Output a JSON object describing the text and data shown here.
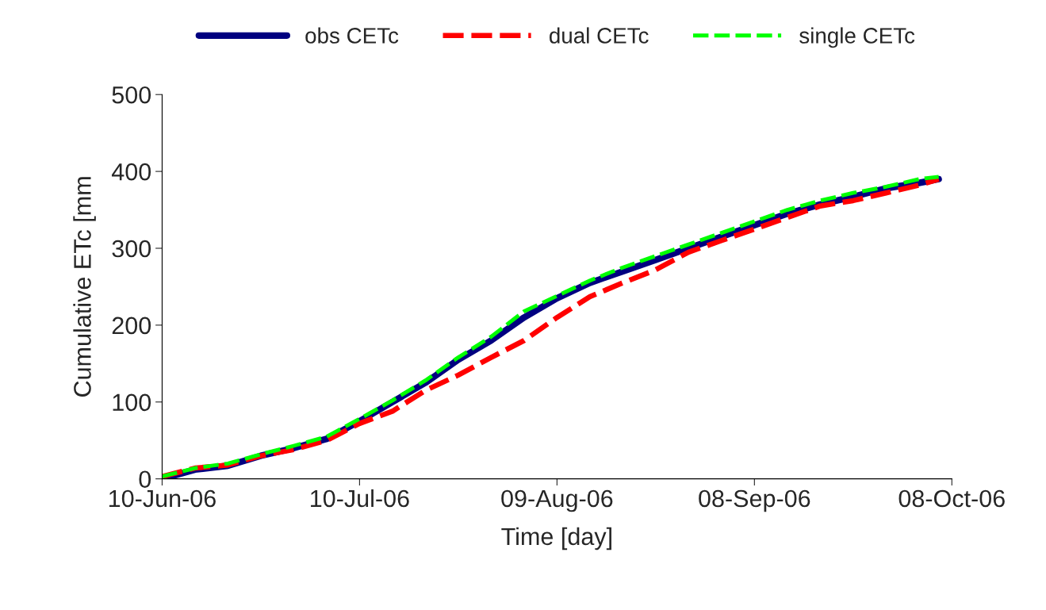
{
  "chart_data": {
    "type": "line",
    "xlabel": "Time [day]",
    "ylabel": "Cumulative ETc [mm",
    "x": [
      "2006-06-10",
      "2006-06-15",
      "2006-06-20",
      "2006-06-25",
      "2006-06-30",
      "2006-07-05",
      "2006-07-10",
      "2006-07-15",
      "2006-07-20",
      "2006-07-25",
      "2006-07-30",
      "2006-08-04",
      "2006-08-09",
      "2006-08-14",
      "2006-08-19",
      "2006-08-24",
      "2006-08-29",
      "2006-09-03",
      "2006-09-08",
      "2006-09-13",
      "2006-09-18",
      "2006-09-23",
      "2006-09-28",
      "2006-10-03",
      "2006-10-06"
    ],
    "series": [
      {
        "name": "obs CETc",
        "color": "#000080",
        "line_style": "solid",
        "values": [
          0,
          12,
          17,
          30,
          40,
          52,
          75,
          100,
          125,
          155,
          180,
          210,
          235,
          255,
          270,
          285,
          300,
          315,
          330,
          345,
          357,
          367,
          378,
          385,
          390
        ]
      },
      {
        "name": "dual CETc",
        "color": "#ff0000",
        "line_style": "dashed",
        "values": [
          3,
          14,
          18,
          30,
          38,
          50,
          72,
          88,
          115,
          135,
          158,
          180,
          210,
          237,
          255,
          272,
          295,
          310,
          325,
          340,
          355,
          362,
          372,
          382,
          390
        ]
      },
      {
        "name": "single CETc",
        "color": "#00ff00",
        "line_style": "dashed",
        "values": [
          3,
          14,
          20,
          32,
          43,
          55,
          78,
          102,
          128,
          158,
          185,
          218,
          238,
          258,
          275,
          290,
          305,
          320,
          335,
          350,
          362,
          372,
          380,
          390,
          393
        ]
      }
    ],
    "xlim": [
      "2006-06-10",
      "2006-10-08"
    ],
    "xticks": [
      {
        "value": "2006-06-10",
        "label": "10-Jun-06"
      },
      {
        "value": "2006-07-10",
        "label": "10-Jul-06"
      },
      {
        "value": "2006-08-09",
        "label": "09-Aug-06"
      },
      {
        "value": "2006-09-08",
        "label": "08-Sep-06"
      },
      {
        "value": "2006-10-08",
        "label": "08-Oct-06"
      }
    ],
    "ylim": [
      0,
      500
    ],
    "yticks": [
      0,
      100,
      200,
      300,
      400,
      500
    ],
    "grid": false,
    "legend": "top",
    "marker": "none"
  }
}
